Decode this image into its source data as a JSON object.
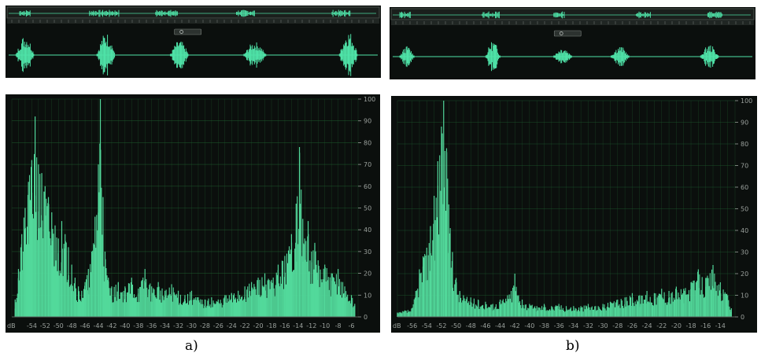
{
  "figure": {
    "captions": [
      "a)",
      "b)"
    ]
  },
  "colors": {
    "waveform": "#4fe3a8",
    "histogram_fill": "#52d99b",
    "background": "#0b0f0d",
    "grid": "#1f5c2e",
    "axis_text": "#9aa09c"
  },
  "chart_data": [
    {
      "type": "area",
      "panel": "a)",
      "xlabel": "dB",
      "ylabel": "",
      "xlim": [
        -57,
        -5
      ],
      "ylim": [
        0,
        100
      ],
      "x_ticks": [
        -54,
        -52,
        -50,
        -48,
        -46,
        -44,
        -42,
        -40,
        -38,
        -36,
        -34,
        -32,
        -30,
        -28,
        -26,
        -24,
        -22,
        -20,
        -18,
        -16,
        -14,
        -12,
        -10,
        -8,
        -6
      ],
      "y_ticks": [
        0,
        10,
        20,
        30,
        40,
        50,
        60,
        70,
        80,
        90,
        100
      ],
      "grid": true,
      "peaks": [
        {
          "x": -56.5,
          "y": 8
        },
        {
          "x": -56,
          "y": 22
        },
        {
          "x": -55.5,
          "y": 38
        },
        {
          "x": -55,
          "y": 50
        },
        {
          "x": -54.5,
          "y": 62
        },
        {
          "x": -54,
          "y": 72
        },
        {
          "x": -53.5,
          "y": 92
        },
        {
          "x": -53,
          "y": 70
        },
        {
          "x": -52.5,
          "y": 66
        },
        {
          "x": -52,
          "y": 60
        },
        {
          "x": -51.5,
          "y": 55
        },
        {
          "x": -51,
          "y": 48
        },
        {
          "x": -50.5,
          "y": 42
        },
        {
          "x": -50,
          "y": 36
        },
        {
          "x": -49.5,
          "y": 44
        },
        {
          "x": -49,
          "y": 38
        },
        {
          "x": -48.5,
          "y": 32
        },
        {
          "x": -48,
          "y": 24
        },
        {
          "x": -47.5,
          "y": 18
        },
        {
          "x": -47,
          "y": 14
        },
        {
          "x": -46.5,
          "y": 12
        },
        {
          "x": -46,
          "y": 16
        },
        {
          "x": -45.5,
          "y": 22
        },
        {
          "x": -45,
          "y": 30
        },
        {
          "x": -44.5,
          "y": 46
        },
        {
          "x": -44,
          "y": 70
        },
        {
          "x": -43.7,
          "y": 100
        },
        {
          "x": -43.3,
          "y": 55
        },
        {
          "x": -43,
          "y": 30
        },
        {
          "x": -42.5,
          "y": 18
        },
        {
          "x": -42,
          "y": 14
        },
        {
          "x": -41,
          "y": 16
        },
        {
          "x": -40,
          "y": 14
        },
        {
          "x": -39,
          "y": 18
        },
        {
          "x": -38,
          "y": 13
        },
        {
          "x": -37,
          "y": 22
        },
        {
          "x": -36,
          "y": 14
        },
        {
          "x": -35,
          "y": 16
        },
        {
          "x": -34,
          "y": 12
        },
        {
          "x": -33,
          "y": 15
        },
        {
          "x": -32,
          "y": 12
        },
        {
          "x": -31,
          "y": 10
        },
        {
          "x": -30,
          "y": 12
        },
        {
          "x": -29,
          "y": 9
        },
        {
          "x": -28,
          "y": 8
        },
        {
          "x": -27,
          "y": 9
        },
        {
          "x": -26,
          "y": 8
        },
        {
          "x": -25,
          "y": 10
        },
        {
          "x": -24,
          "y": 11
        },
        {
          "x": -23,
          "y": 12
        },
        {
          "x": -22,
          "y": 14
        },
        {
          "x": -21,
          "y": 16
        },
        {
          "x": -20,
          "y": 18
        },
        {
          "x": -19,
          "y": 20
        },
        {
          "x": -18,
          "y": 17
        },
        {
          "x": -17,
          "y": 24
        },
        {
          "x": -16,
          "y": 28
        },
        {
          "x": -15,
          "y": 38
        },
        {
          "x": -14.3,
          "y": 52
        },
        {
          "x": -13.8,
          "y": 78
        },
        {
          "x": -13.3,
          "y": 45
        },
        {
          "x": -13,
          "y": 36
        },
        {
          "x": -12.5,
          "y": 44
        },
        {
          "x": -12,
          "y": 30
        },
        {
          "x": -11.5,
          "y": 34
        },
        {
          "x": -11,
          "y": 26
        },
        {
          "x": -10,
          "y": 24
        },
        {
          "x": -9,
          "y": 20
        },
        {
          "x": -8,
          "y": 22
        },
        {
          "x": -7,
          "y": 14
        },
        {
          "x": -6,
          "y": 10
        },
        {
          "x": -5.5,
          "y": 6
        }
      ]
    },
    {
      "type": "area",
      "panel": "b)",
      "xlabel": "dB",
      "ylabel": "",
      "xlim": [
        -58,
        -12
      ],
      "ylim": [
        0,
        100
      ],
      "x_ticks": [
        -56,
        -54,
        -52,
        -50,
        -48,
        -46,
        -44,
        -42,
        -40,
        -38,
        -36,
        -34,
        -32,
        -30,
        -28,
        -26,
        -24,
        -22,
        -20,
        -18,
        -16,
        -14
      ],
      "y_ticks": [
        0,
        10,
        20,
        30,
        40,
        50,
        60,
        70,
        80,
        90,
        100
      ],
      "grid": true,
      "peaks": [
        {
          "x": -58,
          "y": 2
        },
        {
          "x": -57,
          "y": 3
        },
        {
          "x": -56,
          "y": 4
        },
        {
          "x": -55.5,
          "y": 12
        },
        {
          "x": -55,
          "y": 22
        },
        {
          "x": -54.5,
          "y": 28
        },
        {
          "x": -54,
          "y": 32
        },
        {
          "x": -53.5,
          "y": 42
        },
        {
          "x": -53,
          "y": 56
        },
        {
          "x": -52.5,
          "y": 72
        },
        {
          "x": -52,
          "y": 88
        },
        {
          "x": -51.7,
          "y": 100
        },
        {
          "x": -51.3,
          "y": 78
        },
        {
          "x": -51,
          "y": 52
        },
        {
          "x": -50.5,
          "y": 30
        },
        {
          "x": -50,
          "y": 18
        },
        {
          "x": -49.5,
          "y": 12
        },
        {
          "x": -49,
          "y": 10
        },
        {
          "x": -48,
          "y": 9
        },
        {
          "x": -47,
          "y": 8
        },
        {
          "x": -46,
          "y": 7
        },
        {
          "x": -45,
          "y": 6
        },
        {
          "x": -44,
          "y": 8
        },
        {
          "x": -43,
          "y": 10
        },
        {
          "x": -42.5,
          "y": 12
        },
        {
          "x": -42,
          "y": 20
        },
        {
          "x": -41.5,
          "y": 10
        },
        {
          "x": -41,
          "y": 8
        },
        {
          "x": -40,
          "y": 6
        },
        {
          "x": -39,
          "y": 5
        },
        {
          "x": -38,
          "y": 6
        },
        {
          "x": -37,
          "y": 5
        },
        {
          "x": -36,
          "y": 6
        },
        {
          "x": -35,
          "y": 5
        },
        {
          "x": -34,
          "y": 5
        },
        {
          "x": -33,
          "y": 5
        },
        {
          "x": -32,
          "y": 6
        },
        {
          "x": -31,
          "y": 5
        },
        {
          "x": -30,
          "y": 6
        },
        {
          "x": -29,
          "y": 7
        },
        {
          "x": -28,
          "y": 8
        },
        {
          "x": -27,
          "y": 9
        },
        {
          "x": -26,
          "y": 11
        },
        {
          "x": -25,
          "y": 10
        },
        {
          "x": -24,
          "y": 12
        },
        {
          "x": -23,
          "y": 11
        },
        {
          "x": -22,
          "y": 13
        },
        {
          "x": -21,
          "y": 12
        },
        {
          "x": -20,
          "y": 14
        },
        {
          "x": -19,
          "y": 13
        },
        {
          "x": -18,
          "y": 16
        },
        {
          "x": -17,
          "y": 22
        },
        {
          "x": -16,
          "y": 18
        },
        {
          "x": -15,
          "y": 24
        },
        {
          "x": -14,
          "y": 16
        },
        {
          "x": -13,
          "y": 10
        },
        {
          "x": -12.5,
          "y": 4
        }
      ]
    }
  ],
  "waveforms": [
    {
      "panel": "a)",
      "overview_bursts": [
        [
          0.03,
          0.06
        ],
        [
          0.22,
          0.3
        ],
        [
          0.4,
          0.46
        ],
        [
          0.62,
          0.67
        ],
        [
          0.88,
          0.93
        ]
      ],
      "main_bursts": [
        [
          0.02,
          0.07
        ],
        [
          0.24,
          0.29
        ],
        [
          0.44,
          0.49
        ],
        [
          0.64,
          0.7
        ],
        [
          0.9,
          0.95
        ]
      ],
      "main_burst_amplitudes": [
        0.75,
        0.85,
        0.55,
        0.5,
        0.9
      ]
    },
    {
      "panel": "b)",
      "overview_bursts": [
        [
          0.02,
          0.05
        ],
        [
          0.25,
          0.3
        ],
        [
          0.45,
          0.48
        ],
        [
          0.68,
          0.72
        ],
        [
          0.88,
          0.92
        ]
      ],
      "main_bursts": [
        [
          0.02,
          0.06
        ],
        [
          0.26,
          0.3
        ],
        [
          0.45,
          0.5
        ],
        [
          0.61,
          0.66
        ],
        [
          0.86,
          0.91
        ]
      ],
      "main_burst_amplitudes": [
        0.4,
        0.6,
        0.35,
        0.4,
        0.45
      ]
    }
  ]
}
